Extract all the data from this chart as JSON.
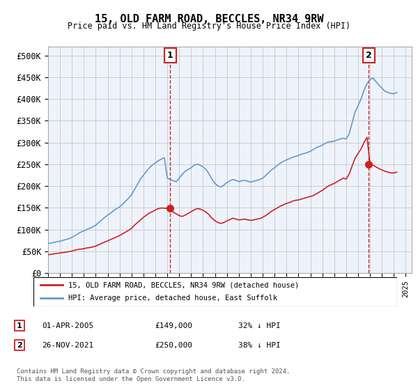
{
  "title": "15, OLD FARM ROAD, BECCLES, NR34 9RW",
  "subtitle": "Price paid vs. HM Land Registry's House Price Index (HPI)",
  "background_color": "#eef3fb",
  "plot_bg_color": "#eef3fb",
  "red_line_label": "15, OLD FARM ROAD, BECCLES, NR34 9RW (detached house)",
  "blue_line_label": "HPI: Average price, detached house, East Suffolk",
  "footer": "Contains HM Land Registry data © Crown copyright and database right 2024.\nThis data is licensed under the Open Government Licence v3.0.",
  "annotation1": {
    "num": "1",
    "date": "01-APR-2005",
    "price": "£149,000",
    "pct": "32% ↓ HPI"
  },
  "annotation2": {
    "num": "2",
    "date": "26-NOV-2021",
    "price": "£250,000",
    "pct": "38% ↓ HPI"
  },
  "yticks": [
    0,
    50000,
    100000,
    150000,
    200000,
    250000,
    300000,
    350000,
    400000,
    450000,
    500000
  ],
  "ylabels": [
    "£0",
    "£50K",
    "£100K",
    "£150K",
    "£200K",
    "£250K",
    "£300K",
    "£350K",
    "£400K",
    "£450K",
    "£500K"
  ],
  "hpi_x": [
    1995.0,
    1995.25,
    1995.5,
    1995.75,
    1996.0,
    1996.25,
    1996.5,
    1996.75,
    1997.0,
    1997.25,
    1997.5,
    1997.75,
    1998.0,
    1998.25,
    1998.5,
    1998.75,
    1999.0,
    1999.25,
    1999.5,
    1999.75,
    2000.0,
    2000.25,
    2000.5,
    2000.75,
    2001.0,
    2001.25,
    2001.5,
    2001.75,
    2002.0,
    2002.25,
    2002.5,
    2002.75,
    2003.0,
    2003.25,
    2003.5,
    2003.75,
    2004.0,
    2004.25,
    2004.5,
    2004.75,
    2005.0,
    2005.25,
    2005.5,
    2005.75,
    2006.0,
    2006.25,
    2006.5,
    2006.75,
    2007.0,
    2007.25,
    2007.5,
    2007.75,
    2008.0,
    2008.25,
    2008.5,
    2008.75,
    2009.0,
    2009.25,
    2009.5,
    2009.75,
    2010.0,
    2010.25,
    2010.5,
    2010.75,
    2011.0,
    2011.25,
    2011.5,
    2011.75,
    2012.0,
    2012.25,
    2012.5,
    2012.75,
    2013.0,
    2013.25,
    2013.5,
    2013.75,
    2014.0,
    2014.25,
    2014.5,
    2014.75,
    2015.0,
    2015.25,
    2015.5,
    2015.75,
    2016.0,
    2016.25,
    2016.5,
    2016.75,
    2017.0,
    2017.25,
    2017.5,
    2017.75,
    2018.0,
    2018.25,
    2018.5,
    2018.75,
    2019.0,
    2019.25,
    2019.5,
    2019.75,
    2020.0,
    2020.25,
    2020.5,
    2020.75,
    2021.0,
    2021.25,
    2021.5,
    2021.75,
    2022.0,
    2022.25,
    2022.5,
    2022.75,
    2023.0,
    2023.25,
    2023.5,
    2023.75,
    2024.0,
    2024.25
  ],
  "hpi_y": [
    68000,
    69000,
    70500,
    72000,
    73000,
    75000,
    77000,
    79000,
    82000,
    86000,
    90000,
    94000,
    97000,
    100000,
    103000,
    106000,
    110000,
    116000,
    122000,
    128000,
    133000,
    138000,
    143000,
    148000,
    152000,
    158000,
    165000,
    172000,
    180000,
    192000,
    204000,
    216000,
    225000,
    234000,
    242000,
    248000,
    253000,
    258000,
    262000,
    265000,
    218000,
    215000,
    212000,
    210000,
    218000,
    227000,
    234000,
    238000,
    242000,
    248000,
    250000,
    248000,
    244000,
    238000,
    228000,
    215000,
    206000,
    200000,
    198000,
    202000,
    208000,
    212000,
    215000,
    213000,
    210000,
    212000,
    213000,
    211000,
    209000,
    211000,
    213000,
    215000,
    218000,
    224000,
    231000,
    237000,
    242000,
    248000,
    253000,
    257000,
    260000,
    263000,
    266000,
    268000,
    270000,
    273000,
    275000,
    277000,
    280000,
    284000,
    288000,
    291000,
    294000,
    298000,
    301000,
    302000,
    303000,
    306000,
    308000,
    310000,
    308000,
    320000,
    345000,
    370000,
    385000,
    400000,
    420000,
    435000,
    445000,
    448000,
    440000,
    432000,
    425000,
    418000,
    415000,
    413000,
    412000,
    415000
  ],
  "red_x": [
    1995.0,
    1995.25,
    1995.5,
    1995.75,
    1996.0,
    1996.25,
    1996.5,
    1996.75,
    1997.0,
    1997.25,
    1997.5,
    1997.75,
    1998.0,
    1998.25,
    1998.5,
    1998.75,
    1999.0,
    1999.25,
    1999.5,
    1999.75,
    2000.0,
    2000.25,
    2000.5,
    2000.75,
    2001.0,
    2001.25,
    2001.5,
    2001.75,
    2002.0,
    2002.25,
    2002.5,
    2002.75,
    2003.0,
    2003.25,
    2003.5,
    2003.75,
    2004.0,
    2004.25,
    2004.5,
    2004.75,
    2005.0,
    2005.25,
    2005.5,
    2005.75,
    2006.0,
    2006.25,
    2006.5,
    2006.75,
    2007.0,
    2007.25,
    2007.5,
    2007.75,
    2008.0,
    2008.25,
    2008.5,
    2008.75,
    2009.0,
    2009.25,
    2009.5,
    2009.75,
    2010.0,
    2010.25,
    2010.5,
    2010.75,
    2011.0,
    2011.25,
    2011.5,
    2011.75,
    2012.0,
    2012.25,
    2012.5,
    2012.75,
    2013.0,
    2013.25,
    2013.5,
    2013.75,
    2014.0,
    2014.25,
    2014.5,
    2014.75,
    2015.0,
    2015.25,
    2015.5,
    2015.75,
    2016.0,
    2016.25,
    2016.5,
    2016.75,
    2017.0,
    2017.25,
    2017.5,
    2017.75,
    2018.0,
    2018.25,
    2018.5,
    2018.75,
    2019.0,
    2019.25,
    2019.5,
    2019.75,
    2020.0,
    2020.25,
    2020.5,
    2020.75,
    2021.0,
    2021.25,
    2021.5,
    2021.75,
    2022.0,
    2022.25,
    2022.5,
    2022.75,
    2023.0,
    2023.25,
    2023.5,
    2023.75,
    2024.0,
    2024.25
  ],
  "red_y": [
    42000,
    43000,
    44000,
    45000,
    46000,
    47000,
    48000,
    49000,
    50500,
    52500,
    54000,
    55000,
    56000,
    57500,
    58500,
    60000,
    62000,
    65000,
    68000,
    71000,
    74000,
    77000,
    80000,
    83000,
    86000,
    90000,
    94000,
    98000,
    103000,
    110000,
    116000,
    122000,
    128000,
    133000,
    138000,
    141000,
    145000,
    148000,
    149500,
    149000,
    149000,
    145000,
    140000,
    136000,
    132000,
    130000,
    133000,
    137000,
    141000,
    145000,
    148000,
    147000,
    144000,
    140000,
    134000,
    126000,
    120000,
    116000,
    114000,
    116000,
    120000,
    123000,
    126000,
    124000,
    122000,
    123000,
    124000,
    122000,
    121000,
    122000,
    124000,
    125000,
    128000,
    132000,
    137000,
    142000,
    146000,
    150000,
    154000,
    157000,
    160000,
    162000,
    165000,
    167000,
    168000,
    170000,
    172000,
    174000,
    176000,
    178000,
    182000,
    186000,
    190000,
    195000,
    200000,
    203000,
    206000,
    210000,
    214000,
    218000,
    216000,
    227000,
    246000,
    264000,
    275000,
    285000,
    300000,
    312000,
    250000,
    248000,
    244000,
    240000,
    237000,
    234000,
    232000,
    230000,
    230000,
    232000
  ],
  "sale1_x": 2005.25,
  "sale1_y": 149000,
  "sale2_x": 2021.9,
  "sale2_y": 250000,
  "vline1_x": 2005.25,
  "vline2_x": 2021.9,
  "xmin": 1995,
  "xmax": 2025.5
}
